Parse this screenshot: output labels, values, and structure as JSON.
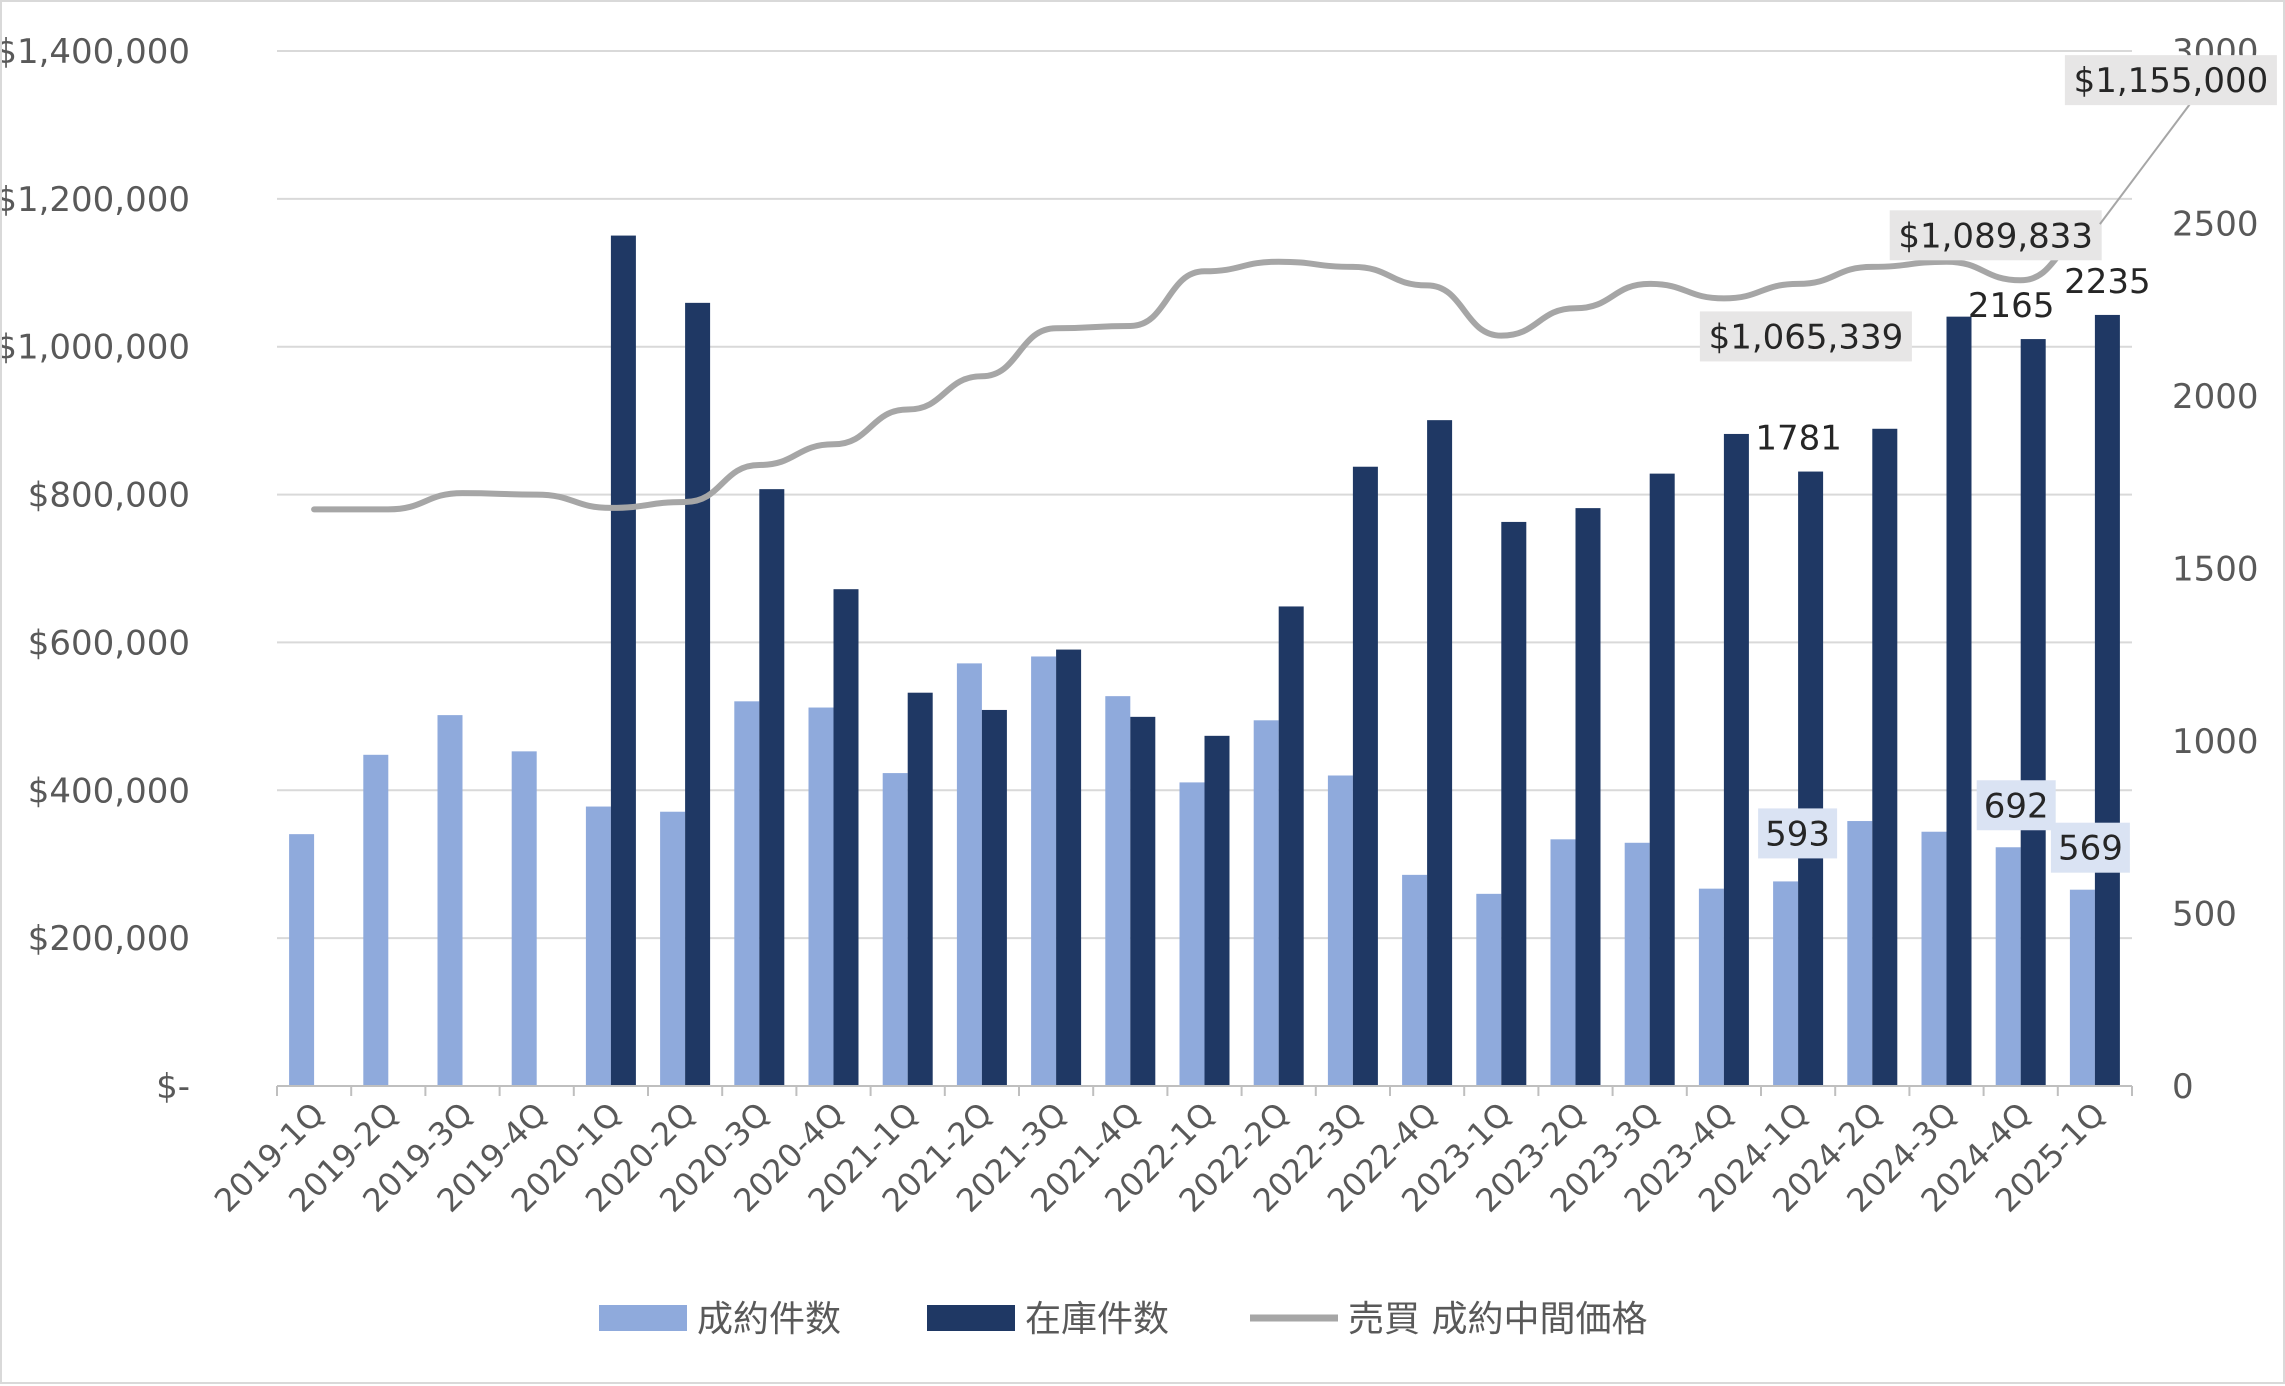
{
  "chart_data": {
    "type": "bar",
    "categories": [
      "2019-1Q",
      "2019-2Q",
      "2019-3Q",
      "2019-4Q",
      "2020-1Q",
      "2020-2Q",
      "2020-3Q",
      "2020-4Q",
      "2021-1Q",
      "2021-2Q",
      "2021-3Q",
      "2021-4Q",
      "2022-1Q",
      "2022-2Q",
      "2022-3Q",
      "2022-4Q",
      "2023-1Q",
      "2023-2Q",
      "2023-3Q",
      "2023-4Q",
      "2024-1Q",
      "2024-2Q",
      "2024-3Q",
      "2024-4Q",
      "2025-1Q"
    ],
    "series": [
      {
        "name": "成約件数",
        "type": "bar",
        "axis": "right",
        "color": "#8faadc",
        "values": [
          730,
          960,
          1075,
          970,
          810,
          795,
          1115,
          1097,
          907,
          1225,
          1245,
          1130,
          880,
          1060,
          900,
          612,
          557,
          715,
          705,
          572,
          593,
          768,
          737,
          692,
          569
        ]
      },
      {
        "name": "在庫件数",
        "type": "bar",
        "axis": "right",
        "color": "#1f3864",
        "values": [
          null,
          null,
          null,
          null,
          2465,
          2270,
          1730,
          1440,
          1140,
          1090,
          1265,
          1070,
          1015,
          1390,
          1795,
          1930,
          1635,
          1675,
          1775,
          1890,
          1781,
          1905,
          2230,
          2165,
          2235
        ]
      },
      {
        "name": "売買 成約中間価格",
        "type": "line",
        "axis": "left",
        "color": "#a6a6a6",
        "values": [
          780000,
          780000,
          802000,
          800000,
          782000,
          790000,
          840000,
          868000,
          915000,
          960000,
          1025000,
          1028000,
          1102000,
          1115000,
          1108000,
          1083000,
          1015000,
          1052000,
          1085000,
          1065339,
          1085000,
          1108000,
          1115000,
          1089833,
          1155000
        ]
      }
    ],
    "y_left": {
      "ylim": [
        0,
        1400000
      ],
      "ticks": [
        "$-",
        "$200,000",
        "$400,000",
        "$600,000",
        "$800,000",
        "$1,000,000",
        "$1,200,000",
        "$1,400,000"
      ]
    },
    "y_right": {
      "ylim": [
        0,
        3000
      ],
      "ticks": [
        "0",
        "500",
        "1000",
        "1500",
        "2000",
        "2500",
        "3000"
      ]
    },
    "grid": true,
    "legend_position": "bottom",
    "callouts": [
      {
        "series": 0,
        "index": 20,
        "text": "593"
      },
      {
        "series": 0,
        "index": 23,
        "text": "692"
      },
      {
        "series": 0,
        "index": 24,
        "text": "569"
      },
      {
        "series": 1,
        "index": 20,
        "text": "1781"
      },
      {
        "series": 1,
        "index": 23,
        "text": "2165"
      },
      {
        "series": 1,
        "index": 24,
        "text": "2235"
      },
      {
        "series": 2,
        "index": 19,
        "text": "$1,065,339"
      },
      {
        "series": 2,
        "index": 23,
        "text": "$1,089,833"
      },
      {
        "series": 2,
        "index": 24,
        "text": "$1,155,000"
      }
    ]
  }
}
